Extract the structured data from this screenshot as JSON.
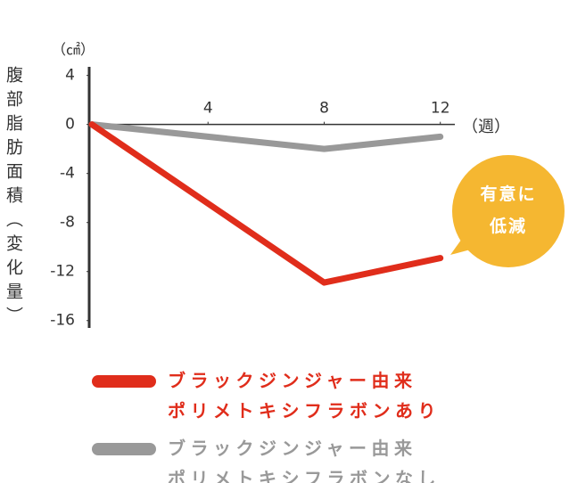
{
  "chart_data": {
    "type": "line",
    "y_label": "腹部脂肪面積（変化量）",
    "y_unit": "（㎠）",
    "x_label": "（週）",
    "annotation": "有意に\n低減",
    "x": [
      0,
      8,
      12
    ],
    "series": [
      {
        "name": "ブラックジンジャー由来\nポリメトキシフラボンあり",
        "color": "#e02d1b",
        "values": [
          0,
          -12.9,
          -10.9
        ]
      },
      {
        "name": "ブラックジンジャー由来\nポリメトキシフラボンなし",
        "color": "#999999",
        "values": [
          0,
          -2,
          -1
        ]
      }
    ],
    "xlim": [
      0,
      12.5
    ],
    "xticks": [
      4,
      8,
      12
    ],
    "ylim": [
      -16.6,
      4.7
    ],
    "yticks": [
      4,
      0,
      -4,
      -8,
      -12,
      -16
    ]
  }
}
